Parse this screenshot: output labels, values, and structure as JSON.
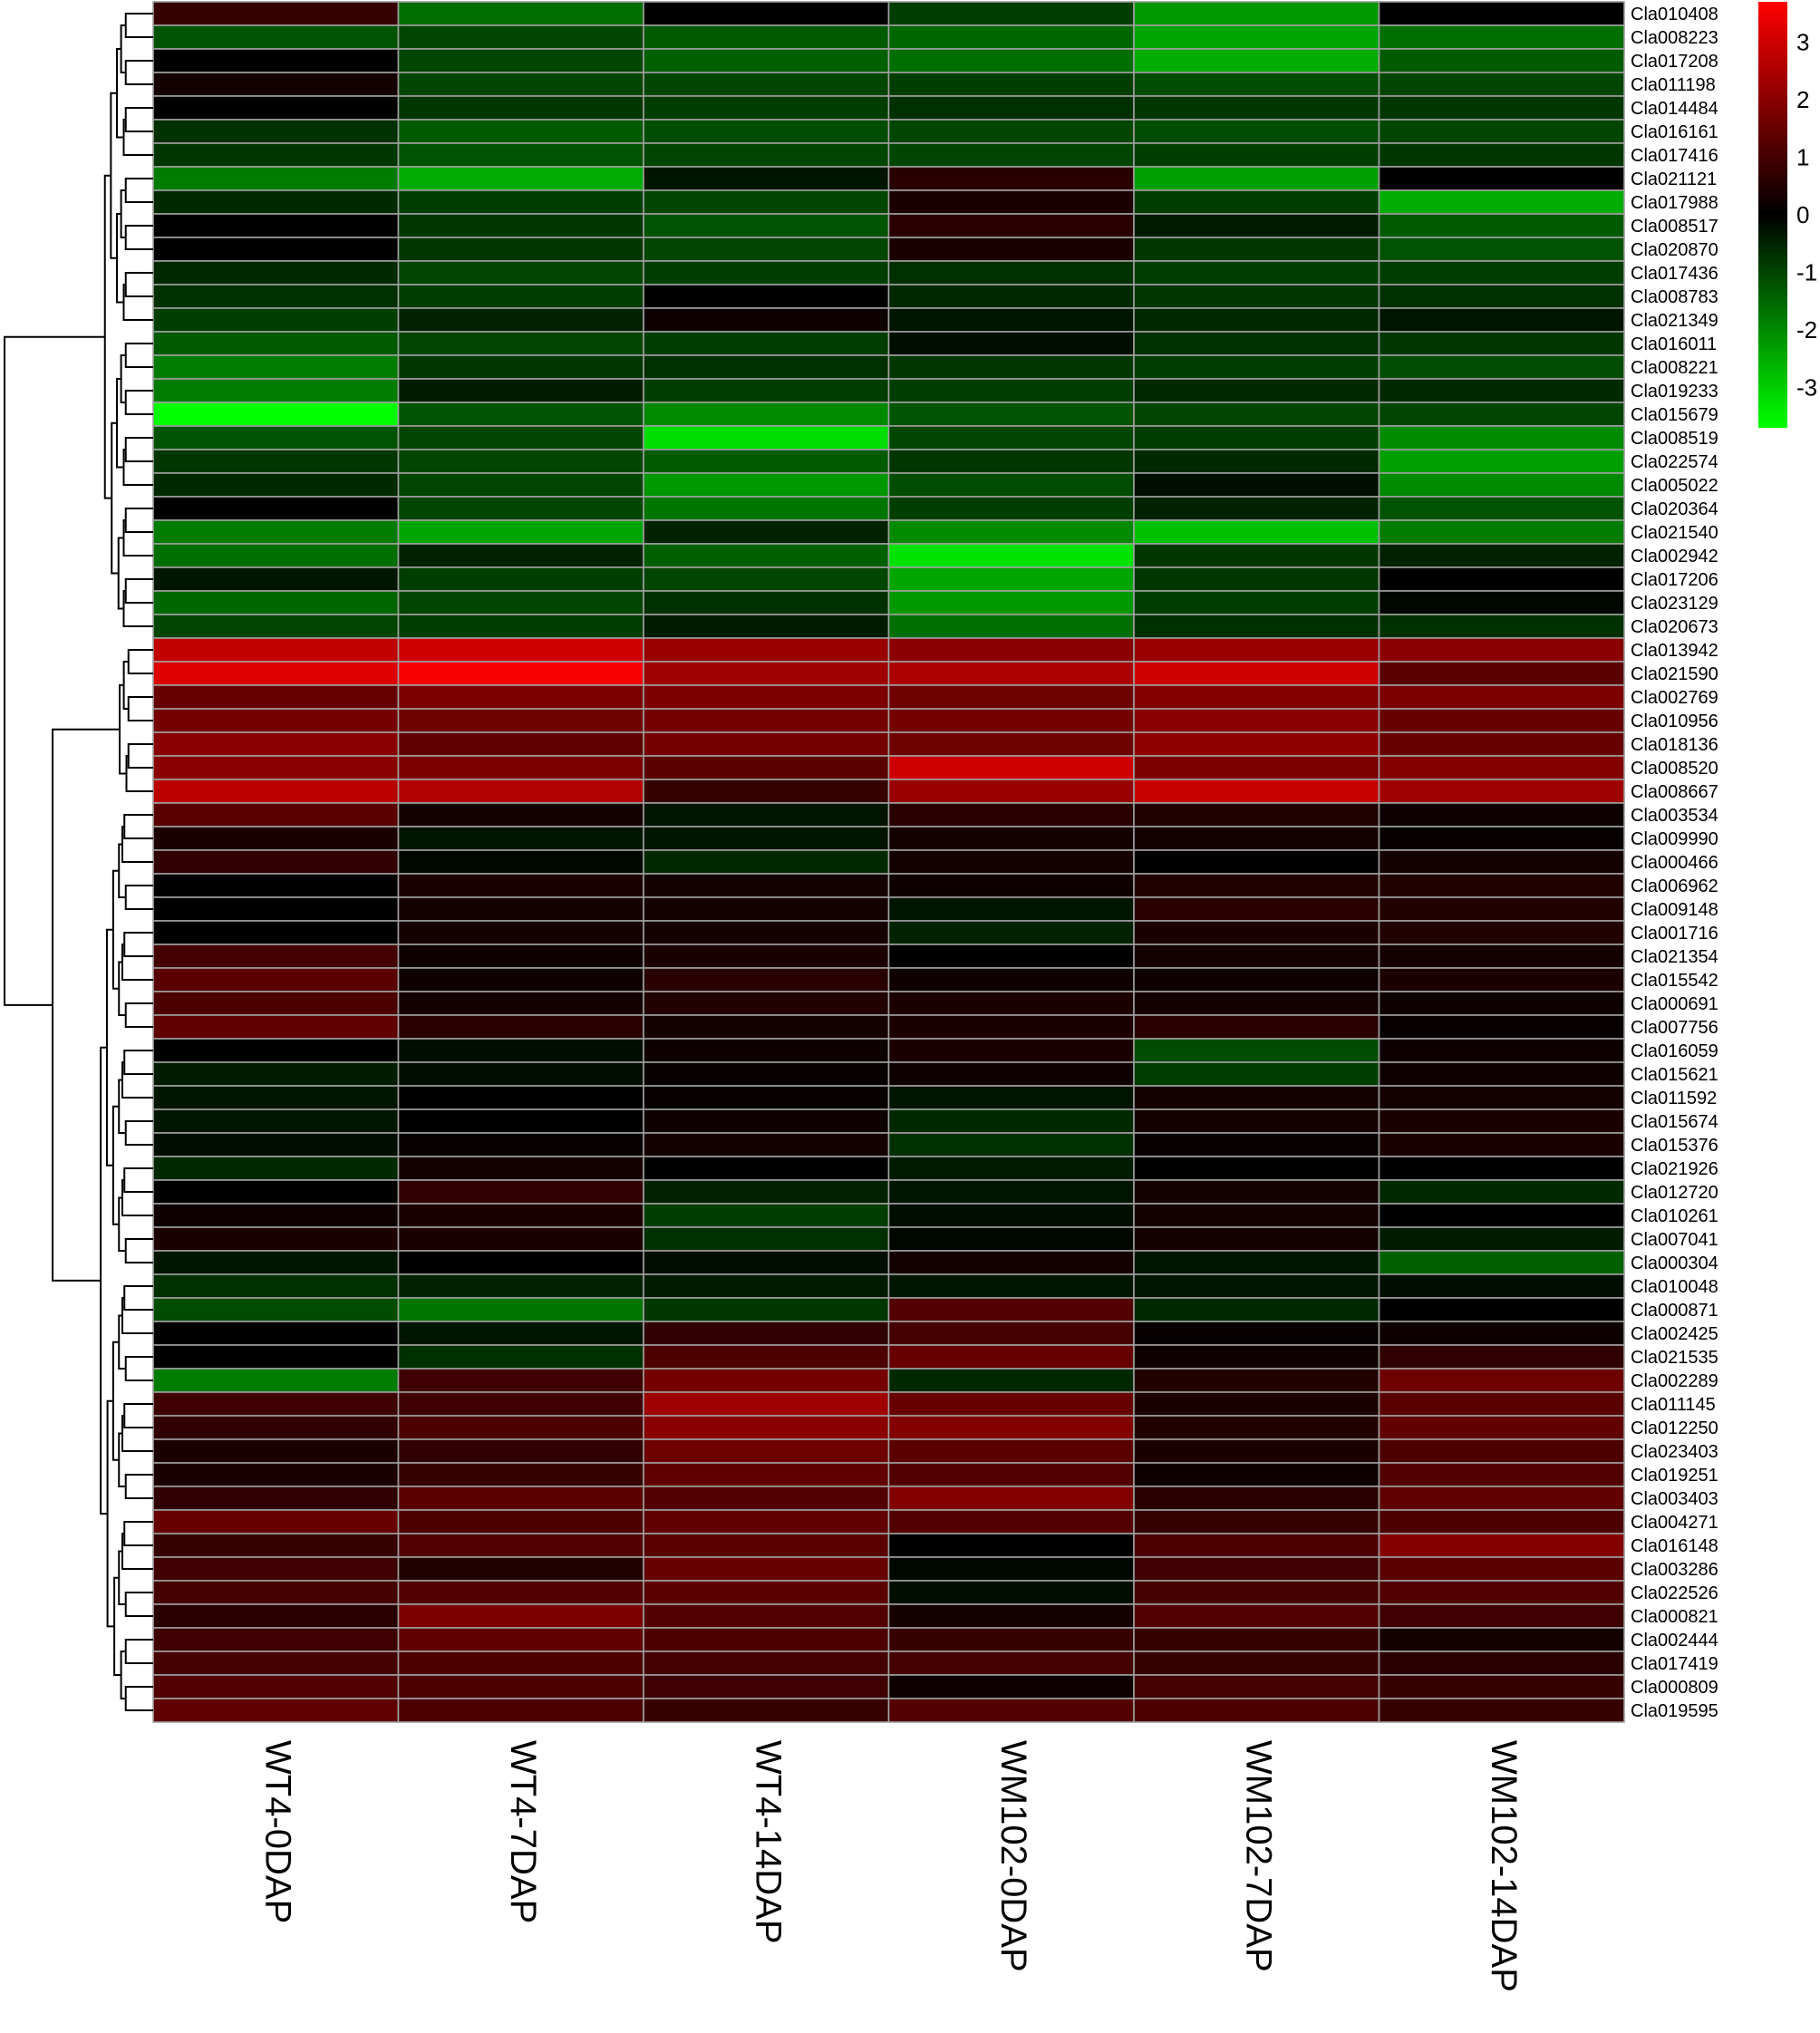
{
  "chart_data": {
    "type": "heatmap",
    "title": "",
    "xlabel": "",
    "ylabel": "",
    "columns": [
      "WT4-0DAP",
      "WT4-7DAP",
      "WT4-14DAP",
      "WM102-0DAP",
      "WM102-7DAP",
      "WM102-14DAP"
    ],
    "rows": [
      "Cla010408",
      "Cla008223",
      "Cla017208",
      "Cla011198",
      "Cla014484",
      "Cla016161",
      "Cla017416",
      "Cla021121",
      "Cla017988",
      "Cla008517",
      "Cla020870",
      "Cla017436",
      "Cla008783",
      "Cla021349",
      "Cla016011",
      "Cla008221",
      "Cla019233",
      "Cla015679",
      "Cla008519",
      "Cla022574",
      "Cla005022",
      "Cla020364",
      "Cla021540",
      "Cla002942",
      "Cla017206",
      "Cla023129",
      "Cla020673",
      "Cla013942",
      "Cla021590",
      "Cla002769",
      "Cla010956",
      "Cla018136",
      "Cla008520",
      "Cla008667",
      "Cla003534",
      "Cla009990",
      "Cla000466",
      "Cla006962",
      "Cla009148",
      "Cla001716",
      "Cla021354",
      "Cla015542",
      "Cla000691",
      "Cla007756",
      "Cla016059",
      "Cla015621",
      "Cla011592",
      "Cla015674",
      "Cla015376",
      "Cla021926",
      "Cla012720",
      "Cla010261",
      "Cla007041",
      "Cla000304",
      "Cla010048",
      "Cla000871",
      "Cla002425",
      "Cla021535",
      "Cla002289",
      "Cla011145",
      "Cla012250",
      "Cla023403",
      "Cla019251",
      "Cla003403",
      "Cla004271",
      "Cla016148",
      "Cla003286",
      "Cla022526",
      "Cla000821",
      "Cla002444",
      "Cla017419",
      "Cla000809",
      "Cla019595"
    ],
    "values": [
      [
        0.8,
        -1.6,
        0.0,
        -0.9,
        -2.2,
        0.0
      ],
      [
        -1.2,
        -1.0,
        -1.3,
        -1.5,
        -2.4,
        -1.6
      ],
      [
        0.0,
        -1.0,
        -1.4,
        -1.6,
        -2.5,
        -1.3
      ],
      [
        0.3,
        -1.0,
        -1.0,
        -0.9,
        -1.1,
        -1.0
      ],
      [
        0.0,
        -0.8,
        -0.9,
        -0.7,
        -0.8,
        -0.8
      ],
      [
        -0.7,
        -1.3,
        -1.1,
        -1.0,
        -1.1,
        -1.0
      ],
      [
        -0.8,
        -1.2,
        -1.0,
        -1.0,
        -0.9,
        -0.8
      ],
      [
        -1.8,
        -2.5,
        -0.3,
        0.6,
        -2.3,
        0.0
      ],
      [
        -0.6,
        -0.9,
        -1.0,
        0.4,
        -0.9,
        -2.5
      ],
      [
        0.0,
        -0.8,
        -1.2,
        0.6,
        -0.4,
        -1.3
      ],
      [
        0.0,
        -0.8,
        -1.0,
        0.4,
        -0.8,
        -1.2
      ],
      [
        -0.6,
        -1.0,
        -0.9,
        -0.7,
        -0.9,
        -0.9
      ],
      [
        -0.7,
        -0.9,
        0.0,
        -0.6,
        -0.8,
        -0.7
      ],
      [
        -0.9,
        -0.5,
        0.2,
        -0.3,
        -0.6,
        -0.3
      ],
      [
        -1.3,
        -1.0,
        -0.9,
        -0.2,
        -0.7,
        -0.8
      ],
      [
        -1.8,
        -0.8,
        -0.7,
        -0.8,
        -0.9,
        -1.1
      ],
      [
        -1.8,
        -0.4,
        -0.9,
        -0.9,
        -0.6,
        -0.6
      ],
      [
        -3.7,
        -1.2,
        -2.0,
        -1.2,
        -1.0,
        -1.0
      ],
      [
        -1.2,
        -1.0,
        -3.2,
        -1.0,
        -0.9,
        -2.0
      ],
      [
        -0.8,
        -1.0,
        -1.3,
        -0.8,
        -0.6,
        -2.3
      ],
      [
        -0.6,
        -1.0,
        -2.2,
        -1.1,
        -0.2,
        -2.0
      ],
      [
        0.0,
        -1.0,
        -1.7,
        -0.9,
        -0.5,
        -1.2
      ],
      [
        -1.8,
        -2.4,
        -0.5,
        -2.0,
        -2.8,
        -1.8
      ],
      [
        -1.6,
        -0.5,
        -1.4,
        -3.3,
        -0.8,
        -0.5
      ],
      [
        -0.3,
        -0.9,
        -1.0,
        -2.4,
        -0.8,
        0.0
      ],
      [
        -1.5,
        -1.0,
        -0.7,
        -2.2,
        -0.9,
        -0.1
      ],
      [
        -1.0,
        -0.9,
        -0.4,
        -1.6,
        -0.7,
        -0.7
      ],
      [
        2.8,
        3.0,
        2.2,
        2.0,
        2.2,
        2.0
      ],
      [
        3.2,
        3.6,
        2.3,
        2.5,
        3.0,
        1.3
      ],
      [
        1.5,
        1.8,
        1.8,
        1.6,
        1.9,
        1.8
      ],
      [
        1.7,
        1.6,
        1.7,
        1.7,
        2.0,
        1.5
      ],
      [
        2.0,
        1.4,
        1.7,
        1.6,
        2.1,
        1.5
      ],
      [
        2.0,
        1.8,
        1.3,
        3.0,
        1.8,
        1.9
      ],
      [
        2.7,
        2.6,
        0.8,
        2.2,
        2.9,
        2.3
      ],
      [
        1.3,
        0.3,
        -0.3,
        0.6,
        0.5,
        0.2
      ],
      [
        0.4,
        -0.3,
        -0.3,
        0.3,
        0.3,
        0.1
      ],
      [
        0.7,
        -0.1,
        -0.6,
        0.3,
        0.0,
        0.3
      ],
      [
        0.0,
        0.4,
        0.3,
        0.2,
        0.5,
        0.5
      ],
      [
        0.0,
        0.3,
        0.3,
        -0.3,
        0.6,
        0.5
      ],
      [
        0.0,
        0.3,
        0.3,
        -0.5,
        0.4,
        0.5
      ],
      [
        1.0,
        0.2,
        0.4,
        0.0,
        0.3,
        0.3
      ],
      [
        1.3,
        0.2,
        0.6,
        0.2,
        0.2,
        0.4
      ],
      [
        1.1,
        0.3,
        0.5,
        0.4,
        0.3,
        0.2
      ],
      [
        1.4,
        0.6,
        0.3,
        0.4,
        0.6,
        0.1
      ],
      [
        0.0,
        -0.2,
        0.2,
        0.4,
        -1.1,
        0.2
      ],
      [
        -0.4,
        -0.2,
        0.1,
        0.2,
        -0.9,
        0.2
      ],
      [
        -0.3,
        0.0,
        0.1,
        -0.3,
        0.3,
        0.3
      ],
      [
        -0.3,
        0.0,
        0.2,
        -0.6,
        0.3,
        0.4
      ],
      [
        -0.2,
        0.1,
        0.3,
        -0.7,
        0.1,
        0.4
      ],
      [
        -0.6,
        0.3,
        0.0,
        -0.4,
        0.0,
        0.0
      ],
      [
        0.0,
        0.7,
        -0.5,
        -0.3,
        0.3,
        -0.6
      ],
      [
        0.2,
        0.4,
        -0.9,
        -0.2,
        0.3,
        0.0
      ],
      [
        0.4,
        0.4,
        -0.7,
        -0.1,
        0.3,
        -0.4
      ],
      [
        -0.3,
        0.0,
        -0.2,
        0.3,
        -0.3,
        -1.4
      ],
      [
        -0.7,
        -0.5,
        -0.4,
        -0.3,
        -0.3,
        -0.2
      ],
      [
        -1.1,
        -1.7,
        -0.8,
        1.2,
        -0.6,
        0.0
      ],
      [
        0.0,
        -0.3,
        0.7,
        1.0,
        0.1,
        0.2
      ],
      [
        0.0,
        -0.7,
        1.1,
        1.5,
        0.2,
        0.7
      ],
      [
        -1.8,
        0.9,
        1.7,
        -0.6,
        0.5,
        1.6
      ],
      [
        0.9,
        0.9,
        2.3,
        1.5,
        0.4,
        1.3
      ],
      [
        0.7,
        1.1,
        2.0,
        1.9,
        0.5,
        1.4
      ],
      [
        0.4,
        0.7,
        1.6,
        1.3,
        0.4,
        1.1
      ],
      [
        0.4,
        0.8,
        1.4,
        1.2,
        0.2,
        1.2
      ],
      [
        0.7,
        1.3,
        1.2,
        1.9,
        0.6,
        1.4
      ],
      [
        1.5,
        1.1,
        1.4,
        1.2,
        0.8,
        1.1
      ],
      [
        0.8,
        1.2,
        1.3,
        0.0,
        1.1,
        1.9
      ],
      [
        0.9,
        0.5,
        1.5,
        -0.1,
        0.9,
        1.3
      ],
      [
        1.0,
        1.2,
        1.3,
        -0.2,
        1.0,
        1.2
      ],
      [
        0.6,
        1.8,
        1.2,
        0.3,
        1.2,
        0.9
      ],
      [
        0.9,
        1.4,
        1.1,
        0.8,
        0.8,
        0.3
      ],
      [
        1.0,
        1.1,
        1.0,
        1.0,
        0.8,
        0.6
      ],
      [
        1.2,
        1.1,
        0.9,
        0.2,
        1.0,
        0.8
      ],
      [
        1.4,
        1.1,
        0.8,
        1.2,
        1.1,
        0.8
      ]
    ],
    "color_scale": {
      "low": "#00ff00",
      "mid": "#000000",
      "high": "#ff0000",
      "min": -3.7,
      "max": 3.7
    },
    "legend": {
      "position": "top-right",
      "ticks": [
        3,
        2,
        1,
        0,
        -1,
        -2,
        -3
      ]
    },
    "dendrogram": {
      "side": "left",
      "clustered": "rows"
    },
    "grid": true
  }
}
